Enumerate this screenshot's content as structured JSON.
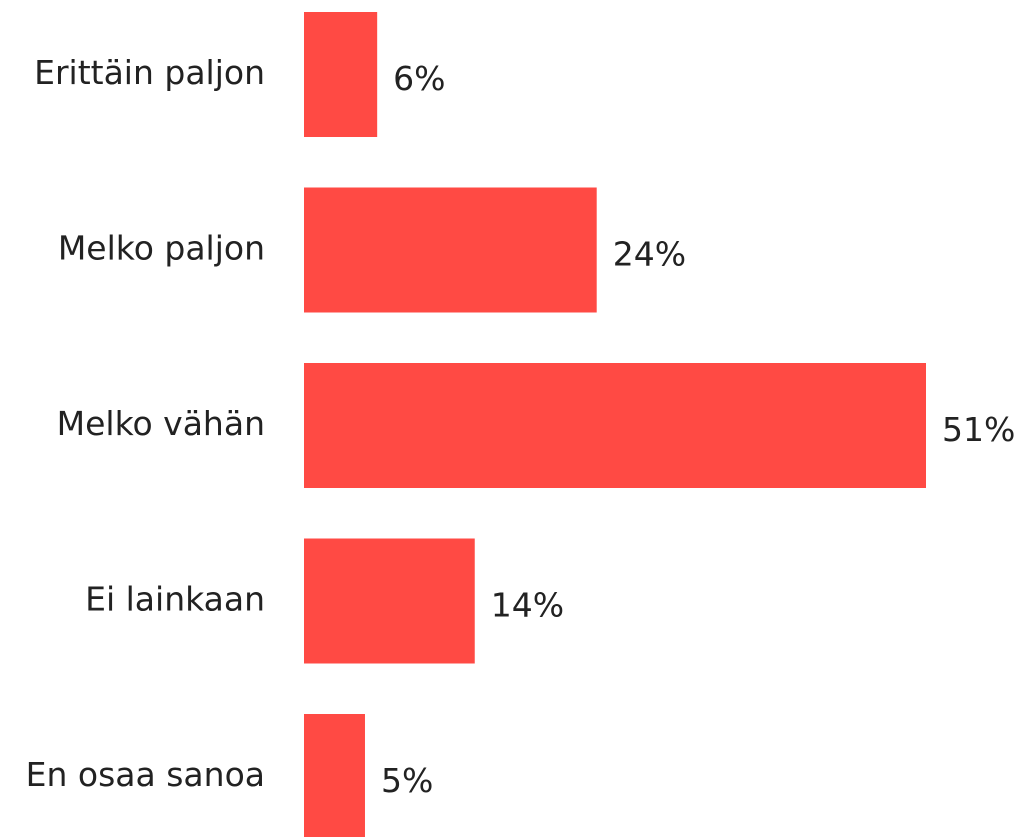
{
  "chart_data": {
    "type": "bar",
    "orientation": "horizontal",
    "categories": [
      "Erittäin paljon",
      "Melko paljon",
      "Melko vähän",
      "Ei lainkaan",
      "En osaa sanoa"
    ],
    "values": [
      6,
      24,
      51,
      14,
      5
    ],
    "value_labels": [
      "6%",
      "24%",
      "51%",
      "14%",
      "5%"
    ],
    "color": "#ff4a44"
  }
}
